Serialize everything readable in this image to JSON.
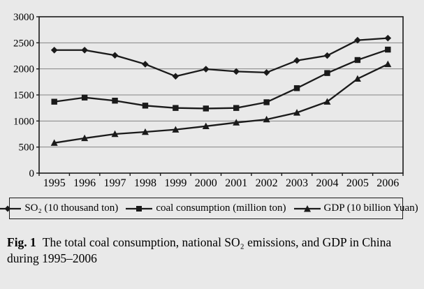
{
  "chart_data": {
    "type": "line",
    "title": "",
    "xlabel": "",
    "ylabel": "",
    "x": [
      "1995",
      "1996",
      "1997",
      "1998",
      "1999",
      "2000",
      "2001",
      "2002",
      "2003",
      "2004",
      "2005",
      "2006"
    ],
    "series": [
      {
        "name": "SO₂ (10 thousand ton)",
        "marker": "diamond",
        "values": [
          2360,
          2360,
          2260,
          2090,
          1858,
          1995,
          1950,
          1930,
          2160,
          2255,
          2550,
          2590
        ]
      },
      {
        "name": "coal consumption (million ton)",
        "marker": "square",
        "values": [
          1370,
          1450,
          1390,
          1295,
          1250,
          1240,
          1250,
          1360,
          1630,
          1920,
          2170,
          2370
        ]
      },
      {
        "name": "GDP (10 billion Yuan)",
        "marker": "triangle",
        "values": [
          580,
          670,
          750,
          790,
          835,
          900,
          970,
          1030,
          1160,
          1370,
          1810,
          2090
        ]
      }
    ],
    "ylim": [
      0,
      3000
    ],
    "yticks": [
      0,
      500,
      1000,
      1500,
      2000,
      2500,
      3000
    ],
    "grid": true,
    "legend_position": "bottom"
  },
  "caption": {
    "label": "Fig. 1",
    "text": "The total coal consumption, national SO₂ emissions, and GDP in China during 1995–2006"
  },
  "colors": {
    "background": "#e9e9e9",
    "line": "#1a1a1a",
    "gridline": "#848484",
    "text": "#000000"
  }
}
